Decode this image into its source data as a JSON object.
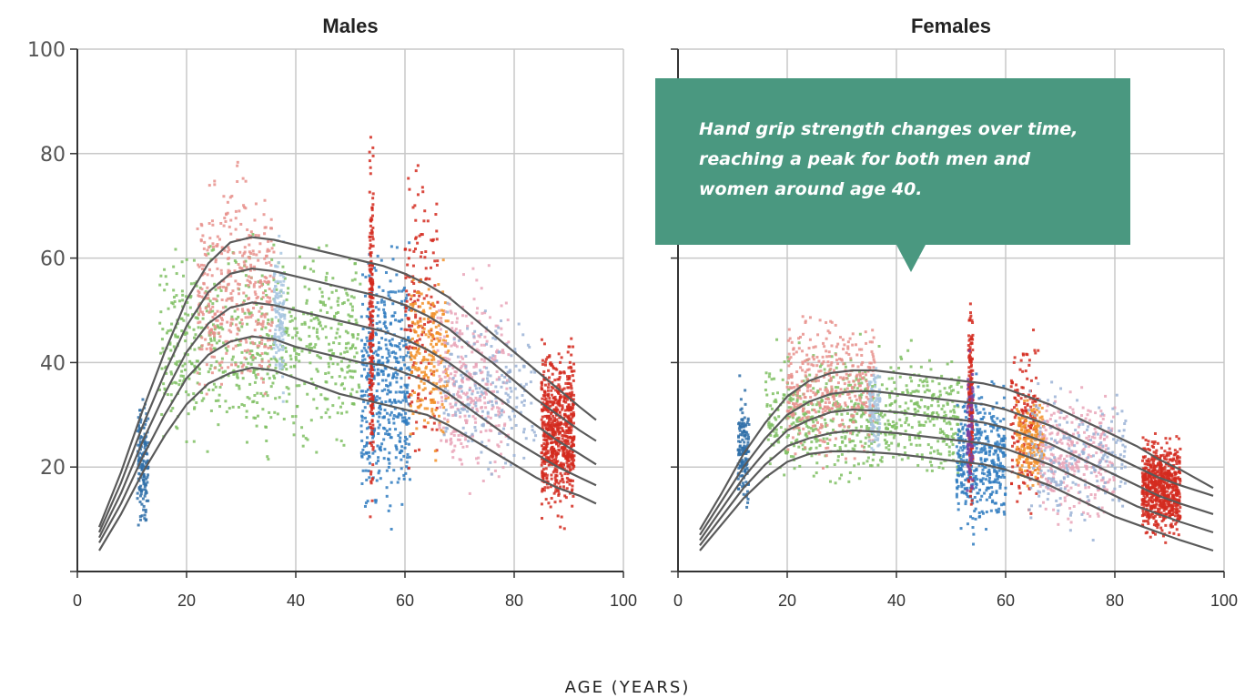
{
  "x_axis_label": "AGE (YEARS)",
  "callout": {
    "text": "Hand grip strength changes over time, reaching a peak for both men and women around age 40.",
    "color": "#4a9880"
  },
  "chart_data": [
    {
      "type": "scatter",
      "title": "Males",
      "xlim": [
        0,
        100
      ],
      "ylim": [
        0,
        100
      ],
      "x_ticks": [
        0,
        20,
        40,
        60,
        80,
        100
      ],
      "y_ticks": [
        20,
        40,
        60,
        80,
        100
      ],
      "grid": true,
      "series": [
        {
          "x": [
            4,
            8,
            12,
            16,
            20,
            24,
            28,
            32,
            36,
            40,
            44,
            48,
            52,
            56,
            60,
            64,
            68,
            72,
            76,
            80,
            84,
            88,
            92,
            95
          ],
          "y": [
            4,
            11,
            19,
            26,
            32,
            36,
            38,
            39,
            38.5,
            37,
            35.5,
            34,
            33,
            32,
            31,
            30,
            28,
            25.5,
            23,
            20.5,
            18,
            16,
            14.5,
            13
          ]
        },
        {
          "x": [
            4,
            8,
            12,
            16,
            20,
            24,
            28,
            32,
            36,
            40,
            44,
            48,
            52,
            56,
            60,
            64,
            68,
            72,
            76,
            80,
            84,
            88,
            92,
            95
          ],
          "y": [
            5.5,
            13,
            22,
            30,
            37,
            41.5,
            44,
            45,
            44.5,
            43,
            42,
            41,
            40,
            39.5,
            38,
            36.5,
            34,
            31,
            28,
            25,
            22.5,
            20,
            18,
            16.5
          ]
        },
        {
          "x": [
            4,
            8,
            12,
            16,
            20,
            24,
            28,
            32,
            36,
            40,
            44,
            48,
            52,
            56,
            60,
            64,
            68,
            72,
            76,
            80,
            84,
            88,
            92,
            95
          ],
          "y": [
            6.5,
            15,
            25,
            34,
            42,
            47.5,
            50.5,
            51.5,
            51,
            50,
            49,
            48,
            47,
            46,
            44.5,
            42.5,
            40,
            37,
            34,
            31,
            28,
            25,
            22.5,
            20.5
          ]
        },
        {
          "x": [
            4,
            8,
            12,
            16,
            20,
            24,
            28,
            32,
            36,
            40,
            44,
            48,
            52,
            56,
            60,
            64,
            68,
            72,
            76,
            80,
            84,
            88,
            92,
            95
          ],
          "y": [
            7.5,
            17,
            28,
            38,
            47,
            53.5,
            57,
            58,
            57.5,
            56.5,
            55.5,
            54.5,
            53.5,
            52.5,
            51,
            49,
            46.5,
            43,
            40,
            36.5,
            33,
            30,
            27,
            25
          ]
        },
        {
          "x": [
            4,
            8,
            12,
            16,
            20,
            24,
            28,
            32,
            36,
            40,
            44,
            48,
            52,
            56,
            60,
            64,
            68,
            72,
            76,
            80,
            84,
            88,
            92,
            95
          ],
          "y": [
            8.5,
            19,
            31,
            42,
            52,
            59,
            63,
            64,
            63.5,
            62.5,
            61.5,
            60.5,
            59.5,
            58.5,
            57,
            55,
            52.5,
            49,
            45.5,
            42,
            38.5,
            35,
            31.5,
            29
          ]
        }
      ],
      "scatter_clusters": [
        {
          "x": [
            11,
            13
          ],
          "y": [
            5,
            36
          ],
          "color": "#2f6fa8",
          "n": 150
        },
        {
          "x": [
            15,
            52
          ],
          "y": [
            18,
            68
          ],
          "color": "#7fbf63",
          "n": 700
        },
        {
          "x": [
            22,
            36
          ],
          "y": [
            26,
            82
          ],
          "color": "#e8908c",
          "n": 400
        },
        {
          "x": [
            36,
            38
          ],
          "y": [
            30,
            68
          ],
          "color": "#a8c6e0",
          "n": 120
        },
        {
          "x": [
            52,
            61
          ],
          "y": [
            4,
            69
          ],
          "color": "#2f7bc0",
          "n": 480
        },
        {
          "x": [
            53.5,
            54.2
          ],
          "y": [
            1,
            89
          ],
          "color": "#d42a1f",
          "n": 220
        },
        {
          "x": [
            60,
            66
          ],
          "y": [
            12,
            88
          ],
          "color": "#d42a1f",
          "n": 160
        },
        {
          "x": [
            61,
            68
          ],
          "y": [
            18,
            64
          ],
          "color": "#f2922a",
          "n": 220
        },
        {
          "x": [
            66,
            79
          ],
          "y": [
            10,
            62
          ],
          "color": "#e9a5b8",
          "n": 320
        },
        {
          "x": [
            67,
            84
          ],
          "y": [
            16,
            54
          ],
          "color": "#9bb3d6",
          "n": 220
        },
        {
          "x": [
            85,
            91
          ],
          "y": [
            7,
            47
          ],
          "color": "#d42a1f",
          "n": 700
        }
      ]
    },
    {
      "type": "scatter",
      "title": "Females",
      "xlim": [
        0,
        100
      ],
      "ylim": [
        0,
        100
      ],
      "x_ticks": [
        0,
        20,
        40,
        60,
        80,
        100
      ],
      "y_ticks": [
        20,
        40,
        60,
        80,
        100
      ],
      "grid": true,
      "series": [
        {
          "x": [
            4,
            8,
            12,
            16,
            20,
            24,
            28,
            32,
            36,
            40,
            44,
            48,
            52,
            56,
            60,
            64,
            68,
            72,
            76,
            80,
            84,
            88,
            92,
            98
          ],
          "y": [
            4,
            9,
            14,
            18,
            21,
            22.5,
            23,
            23,
            22.8,
            22.5,
            22,
            21.5,
            21,
            20.5,
            19.5,
            18,
            16.5,
            14.5,
            12.5,
            10.5,
            9,
            7.5,
            6,
            4
          ]
        },
        {
          "x": [
            4,
            8,
            12,
            16,
            20,
            24,
            28,
            32,
            36,
            40,
            44,
            48,
            52,
            56,
            60,
            64,
            68,
            72,
            76,
            80,
            84,
            88,
            92,
            98
          ],
          "y": [
            5,
            10.5,
            16,
            20.5,
            24,
            25.5,
            26.5,
            27,
            26.8,
            26.5,
            26,
            25.5,
            25,
            24.5,
            23.5,
            22,
            20.5,
            18.5,
            16.5,
            14.5,
            12.5,
            11,
            9.5,
            7.5
          ]
        },
        {
          "x": [
            4,
            8,
            12,
            16,
            20,
            24,
            28,
            32,
            36,
            40,
            44,
            48,
            52,
            56,
            60,
            64,
            68,
            72,
            76,
            80,
            84,
            88,
            92,
            98
          ],
          "y": [
            6,
            12,
            18,
            23,
            27,
            29,
            30.5,
            31,
            30.8,
            30.5,
            30,
            29.5,
            29,
            28.5,
            27.5,
            26,
            24.5,
            22.5,
            20.5,
            18.5,
            16.5,
            14.5,
            13,
            11
          ]
        },
        {
          "x": [
            4,
            8,
            12,
            16,
            20,
            24,
            28,
            32,
            36,
            40,
            44,
            48,
            52,
            56,
            60,
            64,
            68,
            72,
            76,
            80,
            84,
            88,
            92,
            98
          ],
          "y": [
            7,
            13.5,
            20,
            25.5,
            30,
            32.5,
            34,
            34.5,
            34.5,
            34,
            33.5,
            33,
            32.5,
            32,
            31,
            29.5,
            28,
            26,
            24,
            22,
            20,
            18,
            16.5,
            14.5
          ]
        },
        {
          "x": [
            4,
            8,
            12,
            16,
            20,
            24,
            28,
            32,
            36,
            40,
            44,
            48,
            52,
            56,
            60,
            64,
            68,
            72,
            76,
            80,
            84,
            88,
            92,
            98
          ],
          "y": [
            8,
            15,
            22.5,
            28.5,
            33.5,
            36.5,
            38,
            38.5,
            38.5,
            38,
            37.5,
            37,
            36.5,
            36,
            35,
            33.5,
            32,
            30,
            28,
            26,
            24,
            21.5,
            19.5,
            16
          ]
        }
      ],
      "scatter_clusters": [
        {
          "x": [
            11,
            13
          ],
          "y": [
            8,
            38
          ],
          "color": "#2f6fa8",
          "n": 150
        },
        {
          "x": [
            16,
            52
          ],
          "y": [
            14,
            46
          ],
          "color": "#7fbf63",
          "n": 700
        },
        {
          "x": [
            20,
            36
          ],
          "y": [
            18,
            52
          ],
          "color": "#e8908c",
          "n": 400
        },
        {
          "x": [
            35,
            37
          ],
          "y": [
            20,
            42
          ],
          "color": "#a8c6e0",
          "n": 100
        },
        {
          "x": [
            51,
            60
          ],
          "y": [
            4,
            40
          ],
          "color": "#2f7bc0",
          "n": 420
        },
        {
          "x": [
            53.2,
            54
          ],
          "y": [
            8,
            58
          ],
          "color": "#d42a1f",
          "n": 180
        },
        {
          "x": [
            53,
            54
          ],
          "y": [
            10,
            44
          ],
          "color": "#7b3fa0",
          "n": 80
        },
        {
          "x": [
            61,
            66
          ],
          "y": [
            6,
            50
          ],
          "color": "#d42a1f",
          "n": 160
        },
        {
          "x": [
            62,
            67
          ],
          "y": [
            14,
            36
          ],
          "color": "#f2922a",
          "n": 200
        },
        {
          "x": [
            66,
            80
          ],
          "y": [
            6,
            38
          ],
          "color": "#e9a5b8",
          "n": 300
        },
        {
          "x": [
            64,
            82
          ],
          "y": [
            4,
            40
          ],
          "color": "#9bb3d6",
          "n": 220
        },
        {
          "x": [
            85,
            92
          ],
          "y": [
            4,
            28
          ],
          "color": "#d42a1f",
          "n": 700
        }
      ]
    }
  ]
}
